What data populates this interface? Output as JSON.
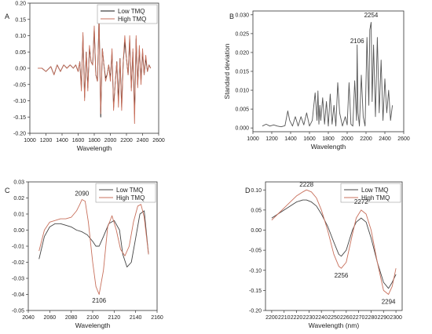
{
  "chart_data": [
    {
      "panel": "A",
      "type": "line",
      "xlabel": "Wavelength",
      "ylabel": "",
      "xlim": [
        1000,
        2600
      ],
      "ylim": [
        -0.2,
        0.2
      ],
      "xticks": [
        1000,
        1200,
        1400,
        1600,
        1800,
        2000,
        2200,
        2400,
        2600
      ],
      "yticks": [
        -0.2,
        -0.15,
        -0.1,
        -0.05,
        0.0,
        0.05,
        0.1,
        0.15,
        0.2
      ],
      "legend": "top-right",
      "colors": [
        "#111111",
        "#c8705c"
      ],
      "series": [
        {
          "name": "Low TMQ",
          "x": [
            1100,
            1150,
            1200,
            1260,
            1300,
            1340,
            1380,
            1420,
            1460,
            1500,
            1540,
            1570,
            1600,
            1620,
            1640,
            1660,
            1680,
            1700,
            1720,
            1740,
            1760,
            1780,
            1800,
            1820,
            1840,
            1860,
            1880,
            1900,
            1920,
            1940,
            1960,
            1980,
            2000,
            2020,
            2040,
            2060,
            2080,
            2100,
            2120,
            2140,
            2160,
            2180,
            2200,
            2220,
            2240,
            2260,
            2280,
            2300,
            2320,
            2340,
            2360,
            2380,
            2400,
            2420,
            2440,
            2460,
            2480,
            2500
          ],
          "y": [
            0,
            0,
            -0.01,
            0.005,
            -0.02,
            0.01,
            -0.01,
            0.01,
            0,
            0.01,
            0,
            0.01,
            -0.01,
            0.02,
            -0.06,
            0.1,
            -0.09,
            0.05,
            -0.06,
            0.06,
            0.02,
            0.01,
            0.12,
            -0.02,
            -0.04,
            0.16,
            -0.15,
            0.06,
            0.01,
            -0.03,
            -0.02,
            0.01,
            -0.03,
            0.05,
            -0.12,
            -0.05,
            0.02,
            -0.1,
            0.03,
            -0.12,
            0.02,
            0.08,
            0.03,
            -0.02,
            0.09,
            -0.06,
            0.05,
            -0.14,
            0.09,
            -0.05,
            0.06,
            -0.04,
            0.05,
            -0.02,
            0.03,
            -0.01,
            0.01,
            0
          ]
        },
        {
          "name": "High TMQ",
          "x": [
            1100,
            1150,
            1200,
            1260,
            1300,
            1340,
            1380,
            1420,
            1460,
            1500,
            1540,
            1570,
            1600,
            1620,
            1640,
            1660,
            1680,
            1700,
            1720,
            1740,
            1760,
            1780,
            1800,
            1820,
            1840,
            1860,
            1880,
            1900,
            1920,
            1940,
            1960,
            1980,
            2000,
            2020,
            2040,
            2060,
            2080,
            2100,
            2120,
            2140,
            2160,
            2180,
            2200,
            2220,
            2240,
            2260,
            2280,
            2300,
            2320,
            2340,
            2360,
            2380,
            2400,
            2420,
            2440,
            2460,
            2480,
            2500
          ],
          "y": [
            0,
            0,
            -0.01,
            0.005,
            -0.02,
            0.01,
            -0.01,
            0.01,
            0,
            0.01,
            0,
            0.01,
            -0.01,
            0.02,
            -0.07,
            0.11,
            -0.1,
            0.05,
            -0.07,
            0.07,
            0.02,
            0.01,
            0.13,
            -0.02,
            -0.04,
            0.16,
            -0.14,
            0.06,
            0.01,
            -0.04,
            -0.02,
            0.01,
            -0.04,
            0.06,
            -0.13,
            -0.05,
            0.02,
            -0.12,
            0.03,
            -0.13,
            0.02,
            0.1,
            0.03,
            -0.02,
            0.1,
            -0.07,
            0.06,
            -0.17,
            0.1,
            -0.06,
            0.07,
            -0.05,
            0.06,
            -0.02,
            0.04,
            -0.01,
            0.01,
            0
          ]
        }
      ]
    },
    {
      "panel": "B",
      "type": "line",
      "xlabel": "Wavelength",
      "ylabel": "Standard deviation",
      "xlim": [
        1000,
        2600
      ],
      "ylim": [
        -0.001,
        0.031
      ],
      "xticks": [
        1000,
        1200,
        1400,
        1600,
        1800,
        2000,
        2200,
        2400,
        2600
      ],
      "yticks": [
        0.0,
        0.005,
        0.01,
        0.015,
        0.02,
        0.025,
        0.03
      ],
      "annotations": [
        {
          "text": "2106",
          "x": 2106,
          "y": 0.0225
        },
        {
          "text": "2254",
          "x": 2254,
          "y": 0.0293
        }
      ],
      "colors": [
        "#555555"
      ],
      "series": [
        {
          "x": [
            1100,
            1140,
            1180,
            1220,
            1260,
            1300,
            1340,
            1370,
            1390,
            1420,
            1450,
            1480,
            1510,
            1540,
            1570,
            1600,
            1630,
            1660,
            1680,
            1690,
            1700,
            1710,
            1720,
            1740,
            1760,
            1780,
            1800,
            1820,
            1840,
            1860,
            1880,
            1900,
            1920,
            1950,
            1980,
            2000,
            2020,
            2040,
            2060,
            2080,
            2100,
            2106,
            2115,
            2130,
            2150,
            2170,
            2190,
            2210,
            2230,
            2240,
            2254,
            2265,
            2280,
            2300,
            2320,
            2340,
            2360,
            2380,
            2400,
            2420,
            2440,
            2460,
            2480
          ],
          "y": [
            0.0005,
            0.001,
            0.0005,
            0.0008,
            0.0005,
            0.0003,
            0.0006,
            0.0045,
            0.002,
            0.0005,
            0.003,
            0.0005,
            0.003,
            0.0008,
            0.004,
            0.0005,
            0.002,
            0.0093,
            0.002,
            0.0098,
            0.001,
            0.006,
            0.002,
            0.008,
            0.001,
            0.007,
            0.0005,
            0.009,
            0.001,
            0.006,
            0.0005,
            0.012,
            0.004,
            0.0005,
            0.003,
            0.0008,
            0.012,
            0.001,
            0.0005,
            0.0125,
            0.002,
            0.022,
            0.004,
            0.0005,
            0.014,
            0.003,
            0.0005,
            0.024,
            0.006,
            0.026,
            0.028,
            0.007,
            0.022,
            0.003,
            0.024,
            0.004,
            0.018,
            0.002,
            0.013,
            0.004,
            0.01,
            0.002,
            0.006
          ]
        }
      ]
    },
    {
      "panel": "C",
      "type": "line",
      "xlabel": "Wavelength",
      "ylabel": "",
      "xlim": [
        2040,
        2160
      ],
      "ylim": [
        -0.05,
        0.03
      ],
      "xticks": [
        2040,
        2060,
        2080,
        2100,
        2120,
        2140,
        2160
      ],
      "yticks": [
        -0.05,
        -0.04,
        -0.03,
        -0.02,
        -0.01,
        0.0,
        0.01,
        0.02,
        0.03
      ],
      "legend": "top-right",
      "annotations": [
        {
          "text": "2090",
          "x": 2090,
          "y": 0.0215
        },
        {
          "text": "2106",
          "x": 2106,
          "y": -0.045
        }
      ],
      "colors": [
        "#444444",
        "#c8705c"
      ],
      "series": [
        {
          "name": "Low TMQ",
          "x": [
            2050,
            2055,
            2060,
            2065,
            2070,
            2075,
            2080,
            2085,
            2090,
            2095,
            2100,
            2103,
            2106,
            2110,
            2115,
            2120,
            2125,
            2128,
            2132,
            2136,
            2140,
            2144,
            2148,
            2152
          ],
          "y": [
            -0.018,
            -0.004,
            0.002,
            0.004,
            0.004,
            0.003,
            0.002,
            0.0,
            -0.001,
            -0.003,
            -0.007,
            -0.01,
            -0.01,
            -0.004,
            0.004,
            0.006,
            0.0,
            -0.015,
            -0.023,
            -0.02,
            -0.005,
            0.01,
            0.012,
            -0.015
          ]
        },
        {
          "name": "High TMQ",
          "x": [
            2050,
            2055,
            2060,
            2065,
            2070,
            2075,
            2080,
            2085,
            2088,
            2090,
            2093,
            2096,
            2100,
            2103,
            2106,
            2110,
            2114,
            2118,
            2122,
            2126,
            2130,
            2134,
            2138,
            2142,
            2145,
            2148,
            2152
          ],
          "y": [
            -0.013,
            0.0,
            0.005,
            0.006,
            0.007,
            0.007,
            0.008,
            0.012,
            0.016,
            0.019,
            0.018,
            0.005,
            -0.02,
            -0.035,
            -0.04,
            -0.025,
            0.002,
            0.009,
            0.0,
            -0.012,
            -0.016,
            -0.01,
            0.005,
            0.015,
            0.016,
            0.008,
            -0.015
          ]
        }
      ]
    },
    {
      "panel": "D",
      "type": "line",
      "xlabel": "Wavelength (nm)",
      "ylabel": "",
      "xlim": [
        2195,
        2305
      ],
      "ylim": [
        -0.2,
        0.12
      ],
      "xticks": [
        2200,
        2210,
        2220,
        2230,
        2240,
        2250,
        2260,
        2270,
        2280,
        2290,
        2300
      ],
      "yticks": [
        -0.2,
        -0.15,
        -0.1,
        -0.05,
        0.0,
        0.05,
        0.1
      ],
      "legend": "top-right",
      "annotations": [
        {
          "text": "2228",
          "x": 2228,
          "y": 0.108
        },
        {
          "text": "2272",
          "x": 2272,
          "y": 0.065
        },
        {
          "text": "2256",
          "x": 2256,
          "y": -0.118
        },
        {
          "text": "2294",
          "x": 2294,
          "y": -0.183
        }
      ],
      "colors": [
        "#444444",
        "#c8705c"
      ],
      "series": [
        {
          "name": "Low TMQ",
          "x": [
            2200,
            2205,
            2210,
            2215,
            2220,
            2225,
            2228,
            2232,
            2236,
            2240,
            2245,
            2250,
            2254,
            2256,
            2260,
            2265,
            2268,
            2272,
            2276,
            2280,
            2285,
            2290,
            2294,
            2297,
            2300
          ],
          "y": [
            0.03,
            0.04,
            0.05,
            0.06,
            0.07,
            0.075,
            0.075,
            0.07,
            0.06,
            0.04,
            0.01,
            -0.03,
            -0.06,
            -0.065,
            -0.05,
            0.0,
            0.02,
            0.03,
            0.02,
            -0.02,
            -0.08,
            -0.13,
            -0.145,
            -0.13,
            -0.11
          ]
        },
        {
          "name": "High TMQ",
          "x": [
            2200,
            2205,
            2210,
            2215,
            2220,
            2225,
            2228,
            2232,
            2236,
            2240,
            2245,
            2250,
            2254,
            2256,
            2260,
            2265,
            2268,
            2272,
            2276,
            2280,
            2285,
            2290,
            2294,
            2297,
            2300
          ],
          "y": [
            0.025,
            0.04,
            0.055,
            0.07,
            0.085,
            0.095,
            0.1,
            0.095,
            0.08,
            0.05,
            0.0,
            -0.06,
            -0.09,
            -0.095,
            -0.08,
            -0.01,
            0.03,
            0.05,
            0.04,
            0.0,
            -0.08,
            -0.15,
            -0.16,
            -0.14,
            -0.095
          ]
        }
      ]
    }
  ]
}
